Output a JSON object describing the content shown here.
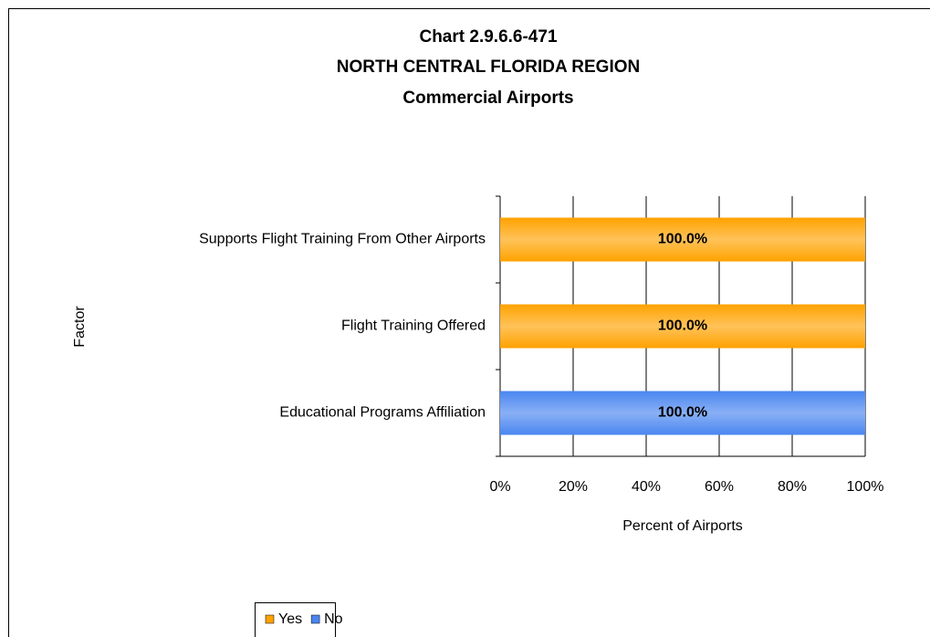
{
  "chart_data": {
    "type": "stacked_bar_horizontal",
    "title": [
      "Chart 2.9.6.6-471",
      "NORTH CENTRAL FLORIDA REGION",
      "Commercial Airports"
    ],
    "categories": [
      "Supports Flight Training From Other Airports",
      "Flight Training Offered",
      "Educational Programs Affiliation"
    ],
    "series": [
      {
        "name": "Yes",
        "color": "#FFA200",
        "values": [
          100,
          100,
          0
        ],
        "value_labels": [
          "100.0%",
          "100.0%",
          null
        ]
      },
      {
        "name": "No",
        "color": "#4A86F0",
        "values": [
          0,
          0,
          100
        ],
        "value_labels": [
          null,
          null,
          "100.0%"
        ]
      }
    ],
    "xlabel": "Percent of Airports",
    "ylabel": "Factor",
    "xlim": [
      0,
      100
    ],
    "xticks": [
      {
        "value": 0,
        "label": "0%"
      },
      {
        "value": 20,
        "label": "20%"
      },
      {
        "value": 40,
        "label": "40%"
      },
      {
        "value": 60,
        "label": "60%"
      },
      {
        "value": 80,
        "label": "80%"
      },
      {
        "value": 100,
        "label": "100%"
      }
    ],
    "grid": true,
    "legend": "bottom-left"
  }
}
